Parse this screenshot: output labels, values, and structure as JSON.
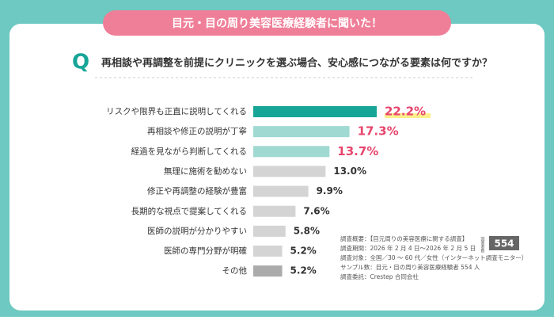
{
  "banner": "目元・目の周り美容医療経験者に聞いた！",
  "q_mark": "Q",
  "question": "再相談や再調整を前提にクリニックを選ぶ場合、安心感につながる要素は何ですか？",
  "survey_notes": [
    "調査概要：【目元周りの美容医療に関する調査】",
    "調査期間：2026 年 2 月 4 日～2026 年 2 月 5 日",
    "調査対象：全国／30 ～ 60 代／女性（インターネット調査モニター）",
    "サンプル数：目元・目の周り美容医療経験者 554 人",
    "調査委託：Crestep 合同会社"
  ],
  "respondents_label": "回答者数",
  "respondents": "554",
  "chart_data": {
    "type": "bar",
    "orientation": "horizontal",
    "categories": [
      "リスクや限界も正直に説明してくれる",
      "再相談や修正の説明が丁寧",
      "経過を見ながら判断してくれる",
      "無理に施術を勧めない",
      "修正や再調整の経験が豊富",
      "長期的な視点で提案してくれる",
      "医師の説明が分かりやすい",
      "医師の専門分野が明確",
      "その他"
    ],
    "values": [
      22.2,
      17.3,
      13.7,
      13.0,
      9.9,
      7.6,
      5.8,
      5.2,
      5.2
    ],
    "value_labels": [
      "22.2%",
      "17.3%",
      "13.7%",
      "13.0%",
      "9.9%",
      "7.6%",
      "5.8%",
      "5.2%",
      "5.2%"
    ],
    "colors": [
      "#17a597",
      "#9fd9d2",
      "#9fd9d2",
      "#d4d4d4",
      "#d4d4d4",
      "#d4d4d4",
      "#d4d4d4",
      "#d4d4d4",
      "#ababab"
    ],
    "value_label_colors": [
      "#e8456c",
      "#e8456c",
      "#e8456c",
      "#333333",
      "#333333",
      "#333333",
      "#333333",
      "#333333",
      "#333333"
    ]
  }
}
